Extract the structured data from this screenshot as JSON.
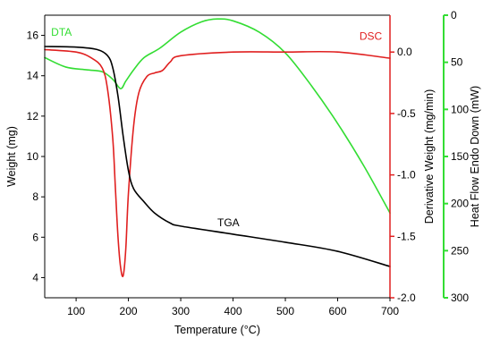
{
  "chart_data": {
    "type": "line",
    "xlabel": "Temperature (°C)",
    "xlim": [
      40,
      700
    ],
    "xticks": [
      100,
      200,
      300,
      400,
      500,
      600,
      700
    ],
    "grid": false,
    "axes": {
      "left": {
        "label": "Weight (mg)",
        "lim": [
          3,
          17
        ],
        "ticks": [
          4,
          6,
          8,
          10,
          12,
          14,
          16
        ],
        "tick_labels": [
          "4",
          "6",
          "8",
          "10",
          "12",
          "14",
          "16"
        ],
        "color": "#000000"
      },
      "right1": {
        "label": "Derivative Weight (mg/min)",
        "lim": [
          -2.0,
          0.3
        ],
        "ticks": [
          -2.0,
          -1.5,
          -1.0,
          -0.5,
          0.0
        ],
        "tick_labels": [
          "-2.0",
          "-1.5",
          "-1.0",
          "-0.5",
          "0.0"
        ],
        "color": "#e02020"
      },
      "right2": {
        "label": "Heat Flow Endo Down (mW)",
        "lim": [
          300,
          0
        ],
        "ticks": [
          0,
          50,
          100,
          150,
          200,
          250,
          300
        ],
        "tick_labels": [
          "0",
          "50",
          "100",
          "150",
          "200",
          "250",
          "300"
        ],
        "color": "#33dd33"
      }
    },
    "series": [
      {
        "name": "TGA",
        "axis": "left",
        "color": "#000000",
        "label_at": [
          370,
          6.55
        ],
        "x": [
          40,
          100,
          140,
          160,
          170,
          180,
          190,
          200,
          210,
          230,
          250,
          280,
          300,
          400,
          500,
          600,
          700
        ],
        "y": [
          15.45,
          15.42,
          15.3,
          15.0,
          14.4,
          13.0,
          11.0,
          9.3,
          8.4,
          7.75,
          7.2,
          6.7,
          6.55,
          6.15,
          5.75,
          5.3,
          4.55
        ]
      },
      {
        "name": "DSC",
        "axis": "right1",
        "color": "#e02020",
        "label_at": [
          685,
          0.1
        ],
        "x": [
          40,
          100,
          130,
          150,
          160,
          170,
          175,
          180,
          185,
          190,
          195,
          200,
          210,
          220,
          235,
          250,
          265,
          280,
          300,
          400,
          500,
          600,
          700
        ],
        "y": [
          0.02,
          0.0,
          -0.05,
          -0.13,
          -0.3,
          -0.7,
          -1.1,
          -1.5,
          -1.75,
          -1.82,
          -1.6,
          -1.15,
          -0.6,
          -0.33,
          -0.2,
          -0.17,
          -0.15,
          -0.08,
          -0.03,
          0.0,
          0.0,
          0.0,
          -0.05
        ]
      },
      {
        "name": "DTA",
        "axis": "right2",
        "color": "#33dd33",
        "label_at": [
          72,
          22
        ],
        "x": [
          40,
          80,
          120,
          150,
          170,
          185,
          195,
          210,
          230,
          260,
          300,
          340,
          370,
          400,
          450,
          500,
          550,
          600,
          650,
          700
        ],
        "y": [
          45,
          55,
          58,
          60,
          68,
          78,
          70,
          58,
          45,
          35,
          18,
          7,
          4,
          6,
          18,
          40,
          75,
          115,
          160,
          210
        ]
      }
    ]
  }
}
